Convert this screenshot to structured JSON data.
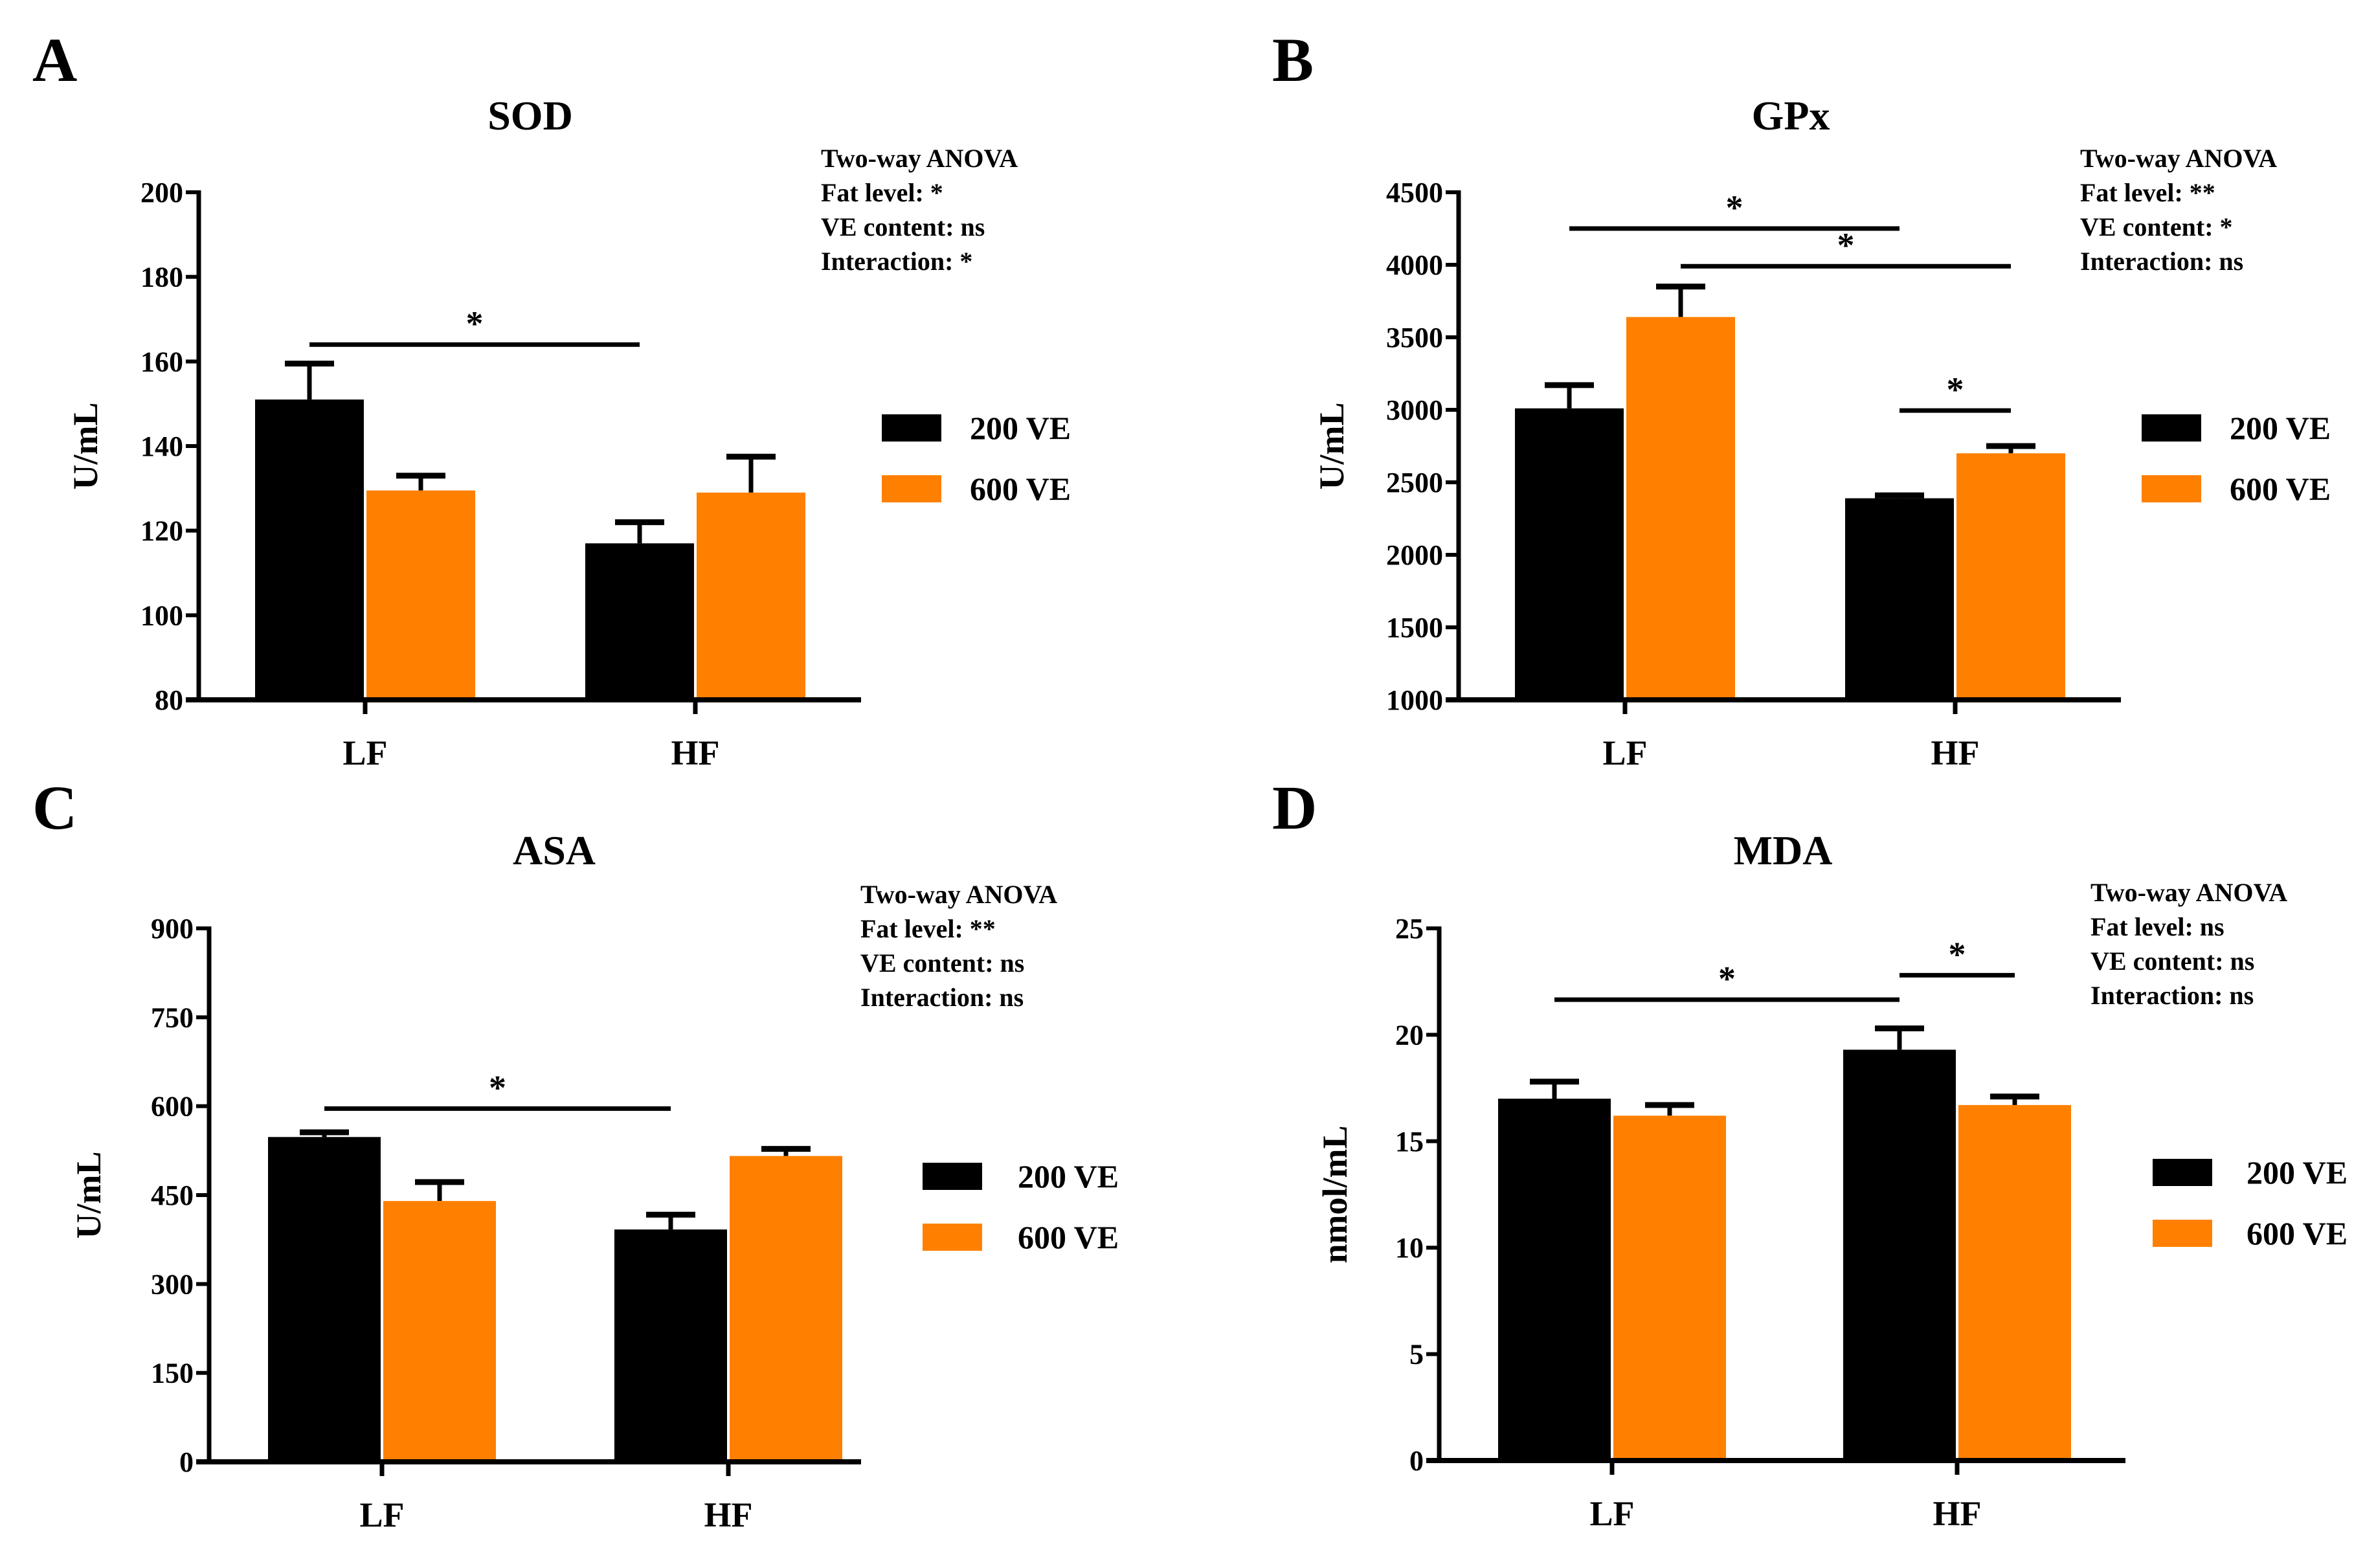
{
  "colors": {
    "s200": "#000000",
    "s600": "#ff8000",
    "axis": "#000000"
  },
  "chart_data": [
    {
      "type": "bar",
      "panel_letter": "A",
      "title": "SOD",
      "ylabel": "U/mL",
      "xlabel": "",
      "ylim": [
        80,
        200
      ],
      "yticks": [
        80,
        100,
        120,
        140,
        160,
        180,
        200
      ],
      "categories": [
        "LF",
        "HF"
      ],
      "series": [
        {
          "name": "200 VE",
          "values": [
            151,
            117
          ],
          "errors": [
            8.5,
            5
          ]
        },
        {
          "name": "600 VE",
          "values": [
            129.5,
            129
          ],
          "errors": [
            3.5,
            8.5
          ]
        }
      ],
      "annotation": [
        "Two-way ANOVA",
        "Fat level: *",
        "VE content: ns",
        "Interaction: *"
      ],
      "significance": [
        {
          "from": [
            0,
            0
          ],
          "to": [
            1,
            0
          ],
          "y": 164,
          "label": "*"
        }
      ],
      "legend": "right"
    },
    {
      "type": "bar",
      "panel_letter": "B",
      "title": "GPx",
      "ylabel": "U/mL",
      "xlabel": "",
      "ylim": [
        1000,
        4500
      ],
      "yticks": [
        1000,
        1500,
        2000,
        2500,
        3000,
        3500,
        4000,
        4500
      ],
      "categories": [
        "LF",
        "HF"
      ],
      "series": [
        {
          "name": "200 VE",
          "values": [
            3010,
            2390
          ],
          "errors": [
            160,
            20
          ]
        },
        {
          "name": "600 VE",
          "values": [
            3640,
            2700
          ],
          "errors": [
            210,
            50
          ]
        }
      ],
      "annotation": [
        "Two-way ANOVA",
        "Fat level: **",
        "VE content: *",
        "Interaction: ns"
      ],
      "significance": [
        {
          "from": [
            0,
            0
          ],
          "to": [
            1,
            0
          ],
          "y": 4250,
          "label": "*"
        },
        {
          "from": [
            0,
            1
          ],
          "to": [
            1,
            1
          ],
          "y": 3990,
          "label": "*"
        },
        {
          "from": [
            1,
            0
          ],
          "to": [
            1,
            1
          ],
          "y": 2995,
          "label": "*"
        }
      ],
      "legend": "right"
    },
    {
      "type": "bar",
      "panel_letter": "C",
      "title": "ASA",
      "ylabel": "U/mL",
      "xlabel": "",
      "ylim": [
        0,
        900
      ],
      "yticks": [
        0,
        150,
        300,
        450,
        600,
        750,
        900
      ],
      "categories": [
        "LF",
        "HF"
      ],
      "series": [
        {
          "name": "200 VE",
          "values": [
            548,
            392
          ],
          "errors": [
            8,
            25
          ]
        },
        {
          "name": "600 VE",
          "values": [
            440,
            516
          ],
          "errors": [
            32,
            12
          ]
        }
      ],
      "annotation": [
        "Two-way ANOVA",
        "Fat level: **",
        "VE content: ns",
        "Interaction: ns"
      ],
      "significance": [
        {
          "from": [
            0,
            0
          ],
          "to": [
            1,
            0
          ],
          "y": 596,
          "label": "*"
        }
      ],
      "legend": "right"
    },
    {
      "type": "bar",
      "panel_letter": "D",
      "title": "MDA",
      "ylabel": "nmol/mL",
      "xlabel": "",
      "ylim": [
        0,
        25
      ],
      "yticks": [
        0,
        5,
        10,
        15,
        20,
        25
      ],
      "categories": [
        "LF",
        "HF"
      ],
      "series": [
        {
          "name": "200 VE",
          "values": [
            17.0,
            19.3
          ],
          "errors": [
            0.8,
            1.0
          ]
        },
        {
          "name": "600 VE",
          "values": [
            16.2,
            16.7
          ],
          "errors": [
            0.5,
            0.4
          ]
        }
      ],
      "annotation": [
        "Two-way ANOVA",
        "Fat level: ns",
        "VE content: ns",
        "Interaction: ns"
      ],
      "significance": [
        {
          "from": [
            0,
            0
          ],
          "to": [
            1,
            0
          ],
          "y": 21.65,
          "label": "*"
        },
        {
          "from": [
            1,
            0
          ],
          "to": [
            1,
            1
          ],
          "y": 22.8,
          "label": "*"
        }
      ],
      "legend": "right"
    }
  ]
}
